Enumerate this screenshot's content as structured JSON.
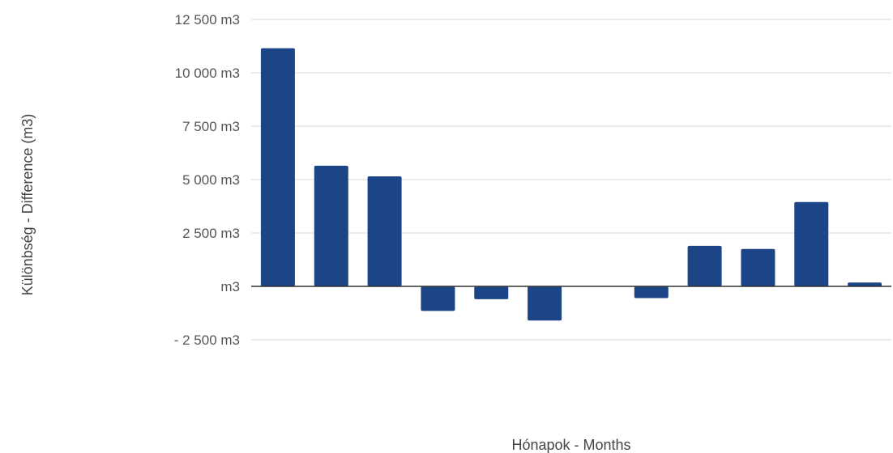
{
  "chart_data": {
    "type": "bar",
    "xlabel": "Hónapok - Months",
    "ylabel": "Különbség - Difference (m3)",
    "ylim": [
      -2500,
      12500
    ],
    "y_ticks": [
      {
        "value": 12500,
        "label": "12 500  m3"
      },
      {
        "value": 10000,
        "label": "10 000  m3"
      },
      {
        "value": 7500,
        "label": "7 500  m3"
      },
      {
        "value": 5000,
        "label": "5 000  m3"
      },
      {
        "value": 2500,
        "label": "2 500  m3"
      },
      {
        "value": 0,
        "label": "m3"
      },
      {
        "value": -2500,
        "label": "- 2 500  m3"
      }
    ],
    "values": [
      11150,
      5650,
      5150,
      -1150,
      -600,
      -1600,
      0,
      -550,
      1900,
      1750,
      3950,
      180
    ],
    "bar_color": "#1c4587",
    "grid": true
  }
}
